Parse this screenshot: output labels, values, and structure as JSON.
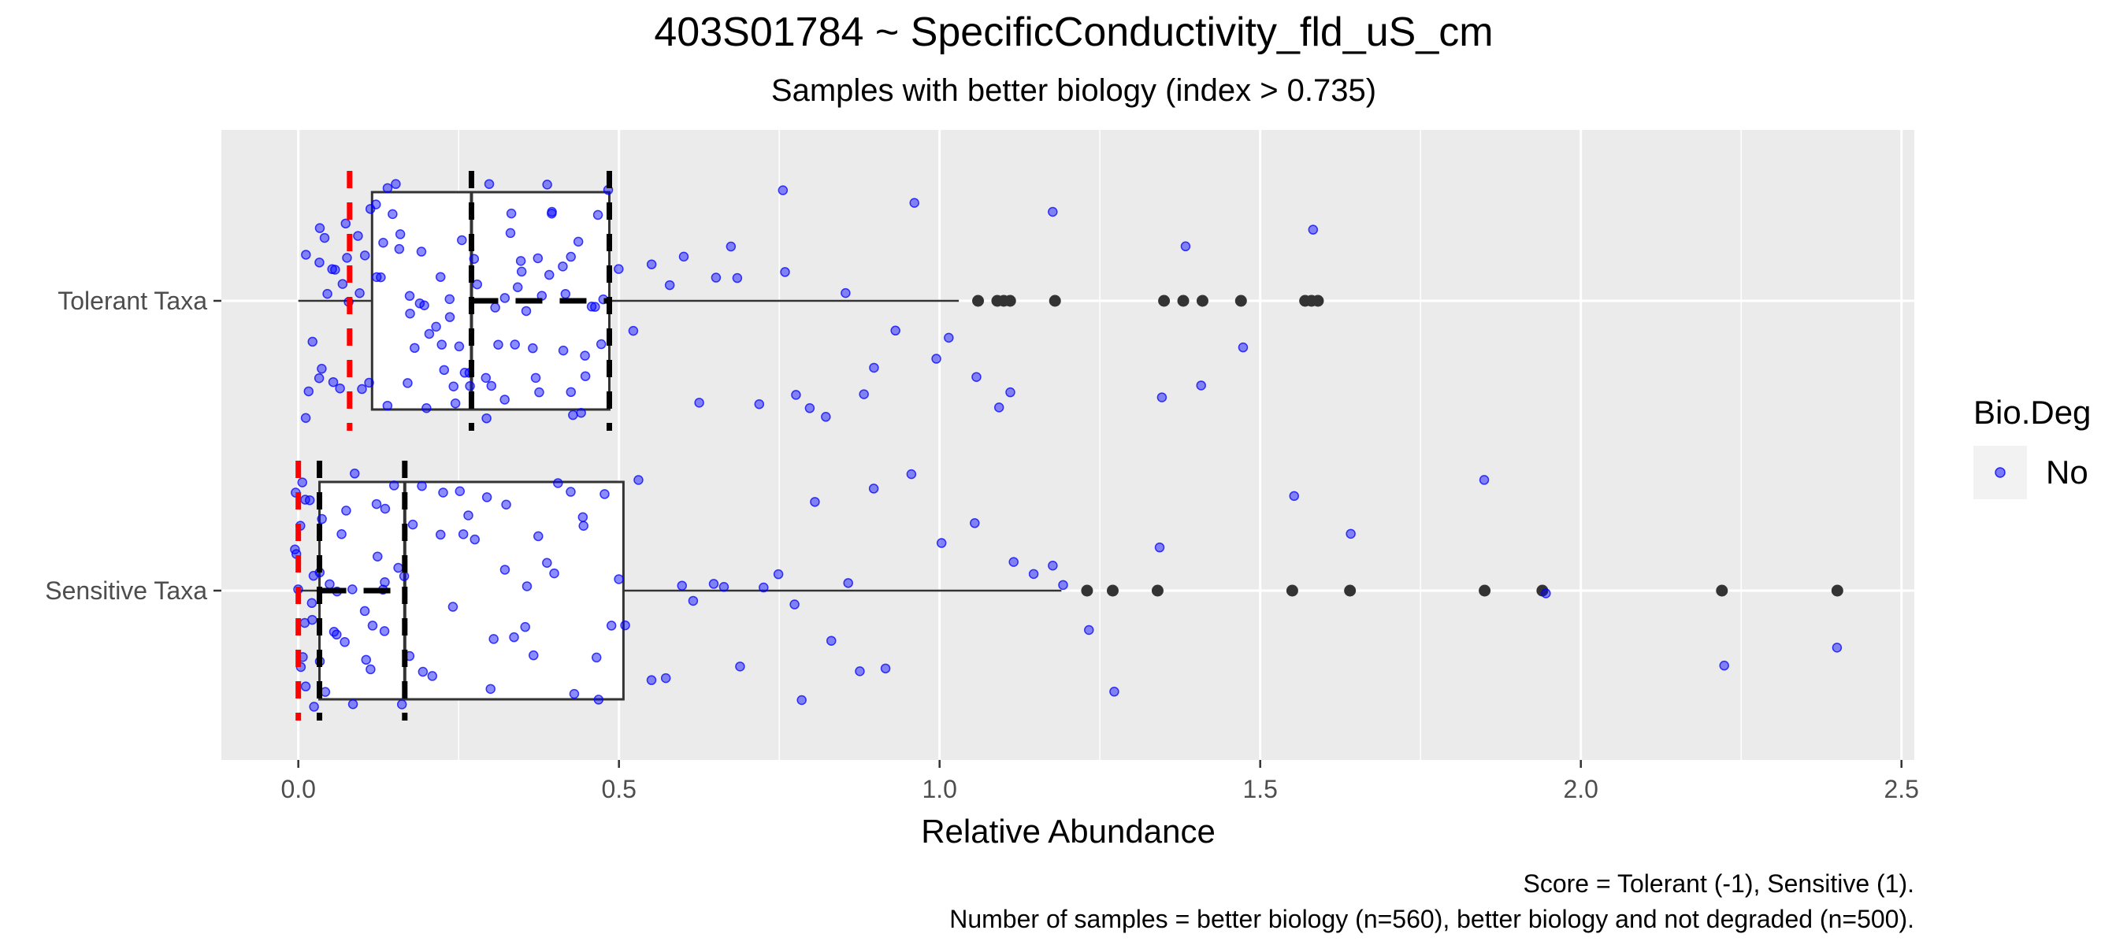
{
  "chart_data": {
    "type": "boxplot-jitter",
    "orientation": "horizontal",
    "title": "403S01784 ~ SpecificConductivity_fld_uS_cm",
    "subtitle": "Samples with better biology (index > 0.735)",
    "xlabel": "Relative Abundance",
    "ylabel": "",
    "xlim": [
      -0.12,
      2.52
    ],
    "x_ticks": [
      0.0,
      0.5,
      1.0,
      1.5,
      2.0,
      2.5
    ],
    "x_tick_labels": [
      "0.0",
      "0.5",
      "1.0",
      "1.5",
      "2.0",
      "2.5"
    ],
    "categories": [
      "Tolerant Taxa",
      "Sensitive Taxa"
    ],
    "grid": true,
    "legend": {
      "title": "Bio.Deg",
      "placement": "right",
      "entries": [
        {
          "label": "No",
          "color": "#0000ff"
        }
      ]
    },
    "boxes": [
      {
        "category": "Tolerant Taxa",
        "min": 0.0,
        "q1": 0.115,
        "median": 0.27,
        "q3": 0.485,
        "whisker_high": 1.03,
        "outliers": [
          1.06,
          1.09,
          1.1,
          1.11,
          1.18,
          1.35,
          1.38,
          1.41,
          1.47,
          1.57,
          1.58,
          1.59
        ],
        "mean": 0.32,
        "markers": {
          "red_dashed": 0.08,
          "black_dashed": [
            0.27,
            0.485
          ]
        }
      },
      {
        "category": "Sensitive Taxa",
        "min": 0.0,
        "q1": 0.033,
        "median": 0.166,
        "q3": 0.507,
        "whisker_high": 1.19,
        "outliers": [
          1.23,
          1.27,
          1.34,
          1.55,
          1.64,
          1.85,
          1.94,
          2.22,
          2.4
        ],
        "mean": 0.12,
        "markers": {
          "red_dashed": 0.0,
          "black_dashed": [
            0.033,
            0.166
          ]
        }
      }
    ],
    "jitter_points": {
      "Tolerant Taxa": [
        0.01,
        0.01,
        0.02,
        0.02,
        0.03,
        0.03,
        0.03,
        0.04,
        0.04,
        0.05,
        0.05,
        0.05,
        0.06,
        0.06,
        0.07,
        0.07,
        0.08,
        0.08,
        0.09,
        0.09,
        0.1,
        0.1,
        0.11,
        0.11,
        0.12,
        0.12,
        0.13,
        0.13,
        0.14,
        0.14,
        0.15,
        0.15,
        0.16,
        0.16,
        0.17,
        0.17,
        0.18,
        0.18,
        0.19,
        0.19,
        0.2,
        0.2,
        0.21,
        0.21,
        0.22,
        0.22,
        0.23,
        0.23,
        0.24,
        0.24,
        0.25,
        0.25,
        0.26,
        0.26,
        0.27,
        0.27,
        0.28,
        0.28,
        0.29,
        0.29,
        0.3,
        0.3,
        0.31,
        0.31,
        0.32,
        0.32,
        0.33,
        0.33,
        0.34,
        0.34,
        0.35,
        0.35,
        0.36,
        0.36,
        0.37,
        0.37,
        0.38,
        0.38,
        0.39,
        0.39,
        0.4,
        0.4,
        0.41,
        0.41,
        0.42,
        0.42,
        0.43,
        0.43,
        0.44,
        0.44,
        0.45,
        0.45,
        0.46,
        0.46,
        0.47,
        0.47,
        0.48,
        0.48,
        0.5,
        0.52,
        0.55,
        0.58,
        0.6,
        0.62,
        0.65,
        0.67,
        0.69,
        0.72,
        0.75,
        0.76,
        0.78,
        0.8,
        0.82,
        0.85,
        0.88,
        0.9,
        0.93,
        0.96,
        0.99,
        1.02,
        1.06,
        1.09,
        1.11,
        1.18,
        1.35,
        1.38,
        1.41,
        1.47,
        1.58
      ],
      "Sensitive Taxa": [
        0.0,
        0.0,
        0.0,
        0.0,
        0.0,
        0.0,
        0.01,
        0.01,
        0.01,
        0.01,
        0.01,
        0.02,
        0.02,
        0.02,
        0.02,
        0.03,
        0.03,
        0.03,
        0.04,
        0.04,
        0.05,
        0.05,
        0.06,
        0.06,
        0.07,
        0.07,
        0.08,
        0.08,
        0.09,
        0.09,
        0.1,
        0.1,
        0.11,
        0.11,
        0.12,
        0.12,
        0.13,
        0.13,
        0.14,
        0.14,
        0.15,
        0.15,
        0.16,
        0.16,
        0.17,
        0.18,
        0.19,
        0.2,
        0.21,
        0.22,
        0.23,
        0.24,
        0.25,
        0.26,
        0.27,
        0.28,
        0.29,
        0.3,
        0.31,
        0.32,
        0.33,
        0.34,
        0.35,
        0.36,
        0.37,
        0.38,
        0.39,
        0.4,
        0.41,
        0.42,
        0.43,
        0.44,
        0.45,
        0.46,
        0.47,
        0.48,
        0.49,
        0.5,
        0.51,
        0.53,
        0.55,
        0.57,
        0.6,
        0.62,
        0.65,
        0.66,
        0.69,
        0.72,
        0.75,
        0.77,
        0.78,
        0.8,
        0.83,
        0.86,
        0.88,
        0.9,
        0.92,
        0.96,
        1.0,
        1.05,
        1.11,
        1.15,
        1.18,
        1.19,
        1.23,
        1.27,
        1.34,
        1.55,
        1.64,
        1.85,
        1.94,
        2.22,
        2.4
      ]
    },
    "point_color": "#0000ff",
    "outlier_color": "#333333",
    "red_marker_color": "#ff0000",
    "caption_lines": [
      "Score = Tolerant (-1), Sensitive (1).",
      "Number of samples = better biology (n=560), better biology and not degraded (n=500)."
    ]
  }
}
